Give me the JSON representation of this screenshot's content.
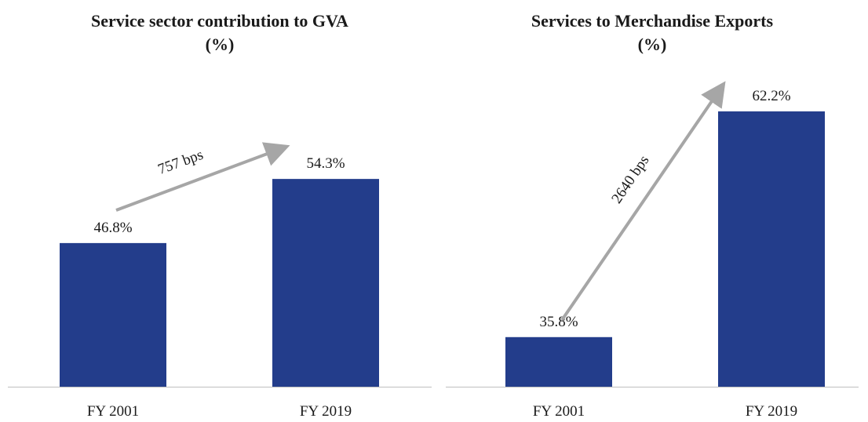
{
  "chart_data": [
    {
      "type": "bar",
      "title": [
        "Service sector contribution to GVA",
        "(%)"
      ],
      "categories": [
        "FY 2001",
        "FY 2019"
      ],
      "values": [
        46.8,
        54.3
      ],
      "value_labels": [
        "46.8%",
        "54.3%"
      ],
      "color": "#233d8b",
      "ylim": [
        30,
        70
      ],
      "annotation": "757 bps"
    },
    {
      "type": "bar",
      "title": [
        "Services to Merchandise Exports",
        "(%)"
      ],
      "categories": [
        "FY 2001",
        "FY 2019"
      ],
      "values": [
        35.8,
        62.2
      ],
      "value_labels": [
        "35.8%",
        "62.2%"
      ],
      "color": "#233d8b",
      "ylim": [
        30,
        70
      ],
      "annotation": "2640 bps"
    }
  ]
}
